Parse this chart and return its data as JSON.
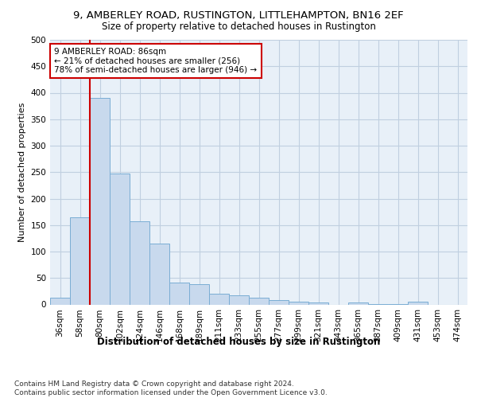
{
  "title1": "9, AMBERLEY ROAD, RUSTINGTON, LITTLEHAMPTON, BN16 2EF",
  "title2": "Size of property relative to detached houses in Rustington",
  "xlabel": "Distribution of detached houses by size in Rustington",
  "ylabel": "Number of detached properties",
  "categories": [
    "36sqm",
    "58sqm",
    "80sqm",
    "102sqm",
    "124sqm",
    "146sqm",
    "168sqm",
    "189sqm",
    "211sqm",
    "233sqm",
    "255sqm",
    "277sqm",
    "299sqm",
    "321sqm",
    "343sqm",
    "365sqm",
    "387sqm",
    "409sqm",
    "431sqm",
    "453sqm",
    "474sqm"
  ],
  "values": [
    13,
    165,
    390,
    248,
    157,
    115,
    42,
    38,
    20,
    17,
    13,
    8,
    6,
    4,
    0,
    4,
    1,
    1,
    6,
    0,
    0
  ],
  "bar_color": "#c8d9ed",
  "bar_edge_color": "#7aadd4",
  "property_line_color": "#cc0000",
  "property_line_index": 2,
  "annotation_text": "9 AMBERLEY ROAD: 86sqm\n← 21% of detached houses are smaller (256)\n78% of semi-detached houses are larger (946) →",
  "annotation_box_color": "#cc0000",
  "annotation_box_fill": "#ffffff",
  "ylim": [
    0,
    500
  ],
  "yticks": [
    0,
    50,
    100,
    150,
    200,
    250,
    300,
    350,
    400,
    450,
    500
  ],
  "grid_color": "#c0cfe0",
  "bg_color": "#e8f0f8",
  "footnote": "Contains HM Land Registry data © Crown copyright and database right 2024.\nContains public sector information licensed under the Open Government Licence v3.0.",
  "title1_fontsize": 9.5,
  "title2_fontsize": 8.5,
  "xlabel_fontsize": 8.5,
  "ylabel_fontsize": 8,
  "tick_fontsize": 7.5,
  "annotation_fontsize": 7.5,
  "footnote_fontsize": 6.5
}
